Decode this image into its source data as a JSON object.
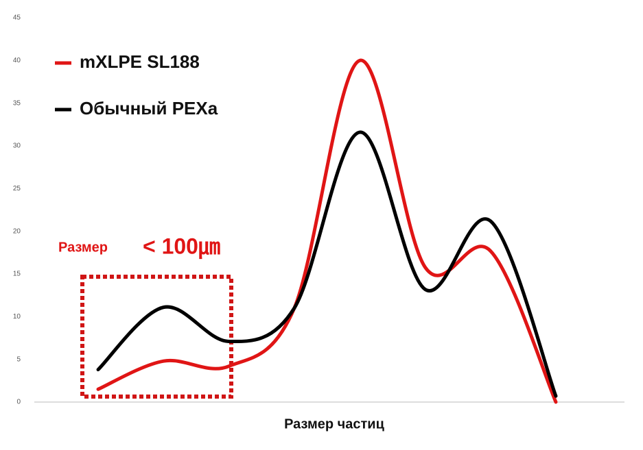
{
  "chart_data": {
    "type": "line",
    "xlabel": "Размер частиц",
    "categories": [
      null,
      null,
      null,
      null,
      null,
      null,
      null,
      null
    ],
    "series": [
      {
        "name": "mXLPE SL188",
        "color": "#e01515",
        "values": [
          1.5,
          4.8,
          4.2,
          11,
          40,
          15.8,
          17.7,
          0
        ]
      },
      {
        "name": "Обычный PEXa",
        "color": "#000000",
        "values": [
          3.8,
          11.1,
          7.1,
          11,
          31.6,
          13.2,
          21.2,
          0.7
        ]
      }
    ],
    "ylim": [
      0,
      45
    ],
    "yticks": [
      0,
      5,
      10,
      15,
      20,
      25,
      30,
      35,
      40,
      45
    ],
    "grid": false,
    "legend": "upper left",
    "annotations": [
      {
        "text": "Размер"
      },
      {
        "text": "< 100㎛"
      }
    ]
  }
}
